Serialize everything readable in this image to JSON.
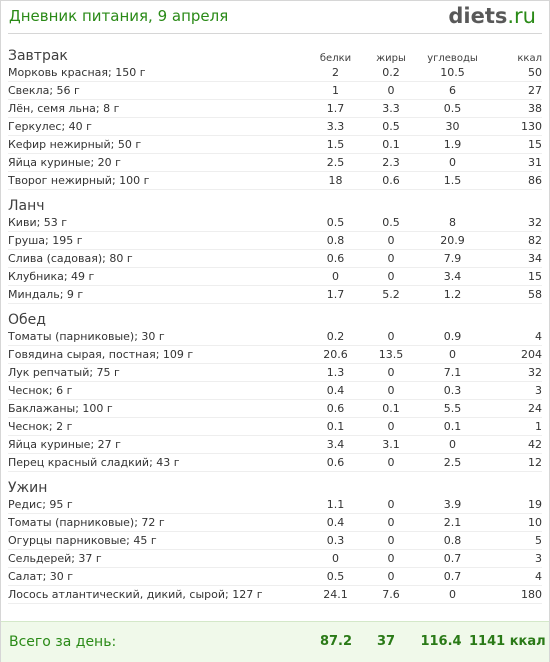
{
  "header": {
    "title": "Дневник питания, 9 апреля",
    "logo_part1": "d",
    "logo_part2": "iets",
    "logo_part3": ".ru"
  },
  "columns": {
    "protein": "белки",
    "fat": "жиры",
    "carbs": "углеводы",
    "kcal": "ккал"
  },
  "meals": [
    {
      "name": "Завтрак",
      "items": [
        {
          "name": "Морковь красная; 150 г",
          "protein": "2",
          "fat": "0.2",
          "carbs": "10.5",
          "kcal": "50"
        },
        {
          "name": "Свекла; 56 г",
          "protein": "1",
          "fat": "0",
          "carbs": "6",
          "kcal": "27"
        },
        {
          "name": "Лён, семя льна; 8 г",
          "protein": "1.7",
          "fat": "3.3",
          "carbs": "0.5",
          "kcal": "38"
        },
        {
          "name": "Геркулес; 40 г",
          "protein": "3.3",
          "fat": "0.5",
          "carbs": "30",
          "kcal": "130"
        },
        {
          "name": "Кефир нежирный; 50 г",
          "protein": "1.5",
          "fat": "0.1",
          "carbs": "1.9",
          "kcal": "15"
        },
        {
          "name": "Яйца куриные; 20 г",
          "protein": "2.5",
          "fat": "2.3",
          "carbs": "0",
          "kcal": "31"
        },
        {
          "name": "Творог нежирный; 100 г",
          "protein": "18",
          "fat": "0.6",
          "carbs": "1.5",
          "kcal": "86"
        }
      ]
    },
    {
      "name": "Ланч",
      "items": [
        {
          "name": "Киви; 53 г",
          "protein": "0.5",
          "fat": "0.5",
          "carbs": "8",
          "kcal": "32"
        },
        {
          "name": "Груша; 195 г",
          "protein": "0.8",
          "fat": "0",
          "carbs": "20.9",
          "kcal": "82"
        },
        {
          "name": "Слива (садовая); 80 г",
          "protein": "0.6",
          "fat": "0",
          "carbs": "7.9",
          "kcal": "34"
        },
        {
          "name": "Клубника; 49 г",
          "protein": "0",
          "fat": "0",
          "carbs": "3.4",
          "kcal": "15"
        },
        {
          "name": "Миндаль; 9 г",
          "protein": "1.7",
          "fat": "5.2",
          "carbs": "1.2",
          "kcal": "58"
        }
      ]
    },
    {
      "name": "Обед",
      "items": [
        {
          "name": "Томаты (парниковые); 30 г",
          "protein": "0.2",
          "fat": "0",
          "carbs": "0.9",
          "kcal": "4"
        },
        {
          "name": "Говядина сырая, постная; 109 г",
          "protein": "20.6",
          "fat": "13.5",
          "carbs": "0",
          "kcal": "204"
        },
        {
          "name": "Лук репчатый; 75 г",
          "protein": "1.3",
          "fat": "0",
          "carbs": "7.1",
          "kcal": "32"
        },
        {
          "name": "Чеснок; 6 г",
          "protein": "0.4",
          "fat": "0",
          "carbs": "0.3",
          "kcal": "3"
        },
        {
          "name": "Баклажаны; 100 г",
          "protein": "0.6",
          "fat": "0.1",
          "carbs": "5.5",
          "kcal": "24"
        },
        {
          "name": "Чеснок; 2 г",
          "protein": "0.1",
          "fat": "0",
          "carbs": "0.1",
          "kcal": "1"
        },
        {
          "name": "Яйца куриные; 27 г",
          "protein": "3.4",
          "fat": "3.1",
          "carbs": "0",
          "kcal": "42"
        },
        {
          "name": "Перец красный сладкий; 43 г",
          "protein": "0.6",
          "fat": "0",
          "carbs": "2.5",
          "kcal": "12"
        }
      ]
    },
    {
      "name": "Ужин",
      "items": [
        {
          "name": "Редис; 95 г",
          "protein": "1.1",
          "fat": "0",
          "carbs": "3.9",
          "kcal": "19"
        },
        {
          "name": "Томаты (парниковые); 72 г",
          "protein": "0.4",
          "fat": "0",
          "carbs": "2.1",
          "kcal": "10"
        },
        {
          "name": "Огурцы парниковые; 45 г",
          "protein": "0.3",
          "fat": "0",
          "carbs": "0.8",
          "kcal": "5"
        },
        {
          "name": "Сельдерей; 37 г",
          "protein": "0",
          "fat": "0",
          "carbs": "0.7",
          "kcal": "3"
        },
        {
          "name": "Салат; 30 г",
          "protein": "0.5",
          "fat": "0",
          "carbs": "0.7",
          "kcal": "4"
        },
        {
          "name": "Лосось атлантический, дикий, сырой; 127 г",
          "protein": "24.1",
          "fat": "7.6",
          "carbs": "0",
          "kcal": "180"
        }
      ]
    }
  ],
  "totals": {
    "label": "Всего за день:",
    "protein": "87.2",
    "fat": "37",
    "carbs": "116.4",
    "kcal": "1141 ккал"
  }
}
